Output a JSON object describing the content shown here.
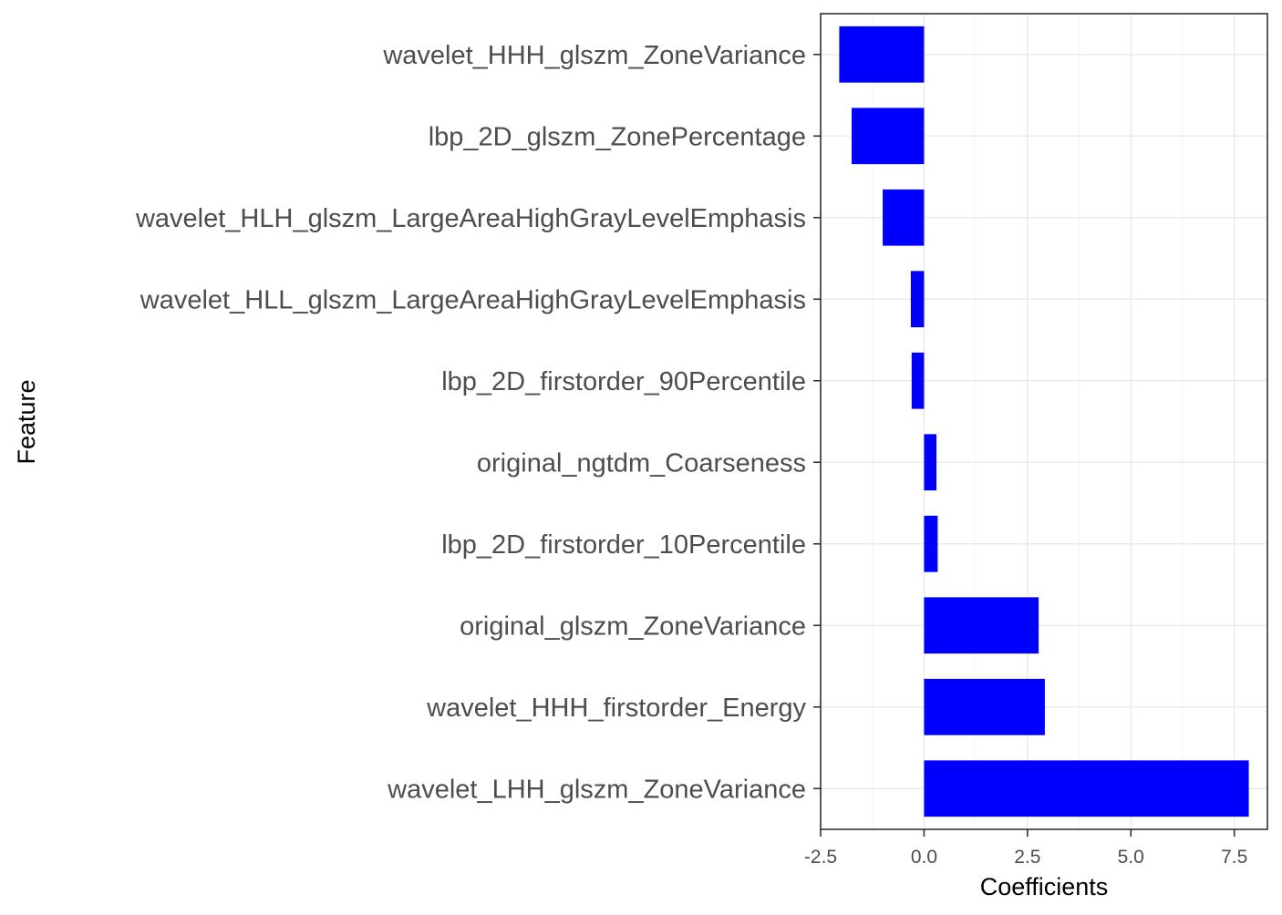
{
  "chart_data": {
    "type": "bar",
    "orientation": "horizontal",
    "categories": [
      "wavelet_HHH_glszm_ZoneVariance",
      "lbp_2D_glszm_ZonePercentage",
      "wavelet_HLH_glszm_LargeAreaHighGrayLevelEmphasis",
      "wavelet_HLL_glszm_LargeAreaHighGrayLevelEmphasis",
      "lbp_2D_firstorder_90Percentile",
      "original_ngtdm_Coarseness",
      "lbp_2D_firstorder_10Percentile",
      "original_glszm_ZoneVariance",
      "wavelet_HHH_firstorder_Energy",
      "wavelet_LHH_glszm_ZoneVariance"
    ],
    "values": [
      -2.05,
      -1.75,
      -1.0,
      -0.32,
      -0.3,
      0.3,
      0.33,
      2.77,
      2.92,
      7.85
    ],
    "xlabel": "Coefficients",
    "ylabel": "Feature",
    "xlim": [
      -2.5,
      8.3
    ],
    "xticks": [
      "-2.5",
      "0.0",
      "2.5",
      "5.0",
      "7.5"
    ],
    "grid": true,
    "bar_color": "#0000ff"
  }
}
